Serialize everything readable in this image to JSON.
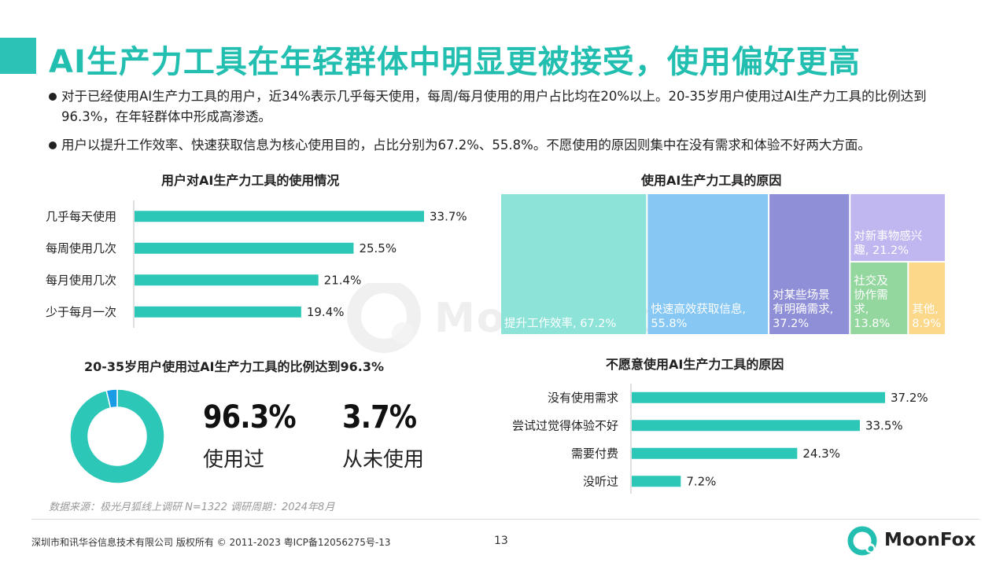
{
  "header": {
    "title": "AI生产力工具在年轻群体中明显更被接受，使用偏好更高"
  },
  "bullets": [
    "对于已经使用AI生产力工具的用户，近34%表示几乎每天使用，每周/每月使用的用户占比均在20%以上。20-35岁用户使用过AI生产力工具的比例达到96.3%，在年轻群体中形成高渗透。",
    "用户以提升工作效率、快速获取信息为核心使用目的，占比分别为67.2%、55.8%。不愿使用的原因则集中在没有需求和体验不好两大方面。"
  ],
  "watermark": "MoonFox",
  "chart_data": [
    {
      "type": "bar",
      "orientation": "horizontal",
      "title": "用户对AI生产力工具的使用情况",
      "categories": [
        "几乎每天使用",
        "每周使用几次",
        "每月使用几次",
        "少于每月一次"
      ],
      "values": [
        33.7,
        25.5,
        21.4,
        19.4
      ],
      "value_labels": [
        "33.7%",
        "25.5%",
        "21.4%",
        "19.4%"
      ],
      "color": "#2cc7b7"
    },
    {
      "type": "treemap",
      "title": "使用AI生产力工具的原因",
      "items": [
        {
          "label_lines": [
            "提升工作效率, 67.2%"
          ],
          "value": 67.2,
          "fill": "#8ee3d9"
        },
        {
          "label_lines": [
            "快速高效获取信息,",
            "55.8%"
          ],
          "value": 55.8,
          "fill": "#86c7f4"
        },
        {
          "label_lines": [
            "对某些场景",
            "有明确需求,",
            "37.2%"
          ],
          "value": 37.2,
          "fill": "#8f8fd8"
        },
        {
          "label_lines": [
            "对新事物感兴",
            "趣, 21.2%"
          ],
          "value": 21.2,
          "fill": "#c0b7f0"
        },
        {
          "label_lines": [
            "社交及",
            "协作需",
            "求,",
            "13.8%"
          ],
          "value": 13.8,
          "fill": "#93d69e"
        },
        {
          "label_lines": [
            "其他,",
            "8.9%"
          ],
          "value": 8.9,
          "fill": "#fbd88a"
        }
      ]
    },
    {
      "type": "pie",
      "title": "20-35岁用户使用过AI生产力工具的比例达到96.3%",
      "slices": [
        {
          "name": "使用过",
          "value": 96.3,
          "label": "96.3%",
          "color": "#2cc7b7"
        },
        {
          "name": "从未使用",
          "value": 3.7,
          "label": "3.7%",
          "color": "#1a9be6"
        }
      ]
    },
    {
      "type": "bar",
      "orientation": "horizontal",
      "title": "不愿意使用AI生产力工具的原因",
      "categories": [
        "没有使用需求",
        "尝试过觉得体验不好",
        "需要付费",
        "没听过"
      ],
      "values": [
        37.2,
        33.5,
        24.3,
        7.2
      ],
      "value_labels": [
        "37.2%",
        "33.5%",
        "24.3%",
        "7.2%"
      ],
      "color": "#2cc7b7"
    }
  ],
  "footer": {
    "source": "数据来源：极光月狐线上调研 N=1322 调研周期：2024年8月",
    "copyright": "深圳市和讯华谷信息技术有限公司 版权所有 © 2011-2023 粤ICP备12056275号-13",
    "page_number": "13",
    "brand": "MoonFox"
  }
}
